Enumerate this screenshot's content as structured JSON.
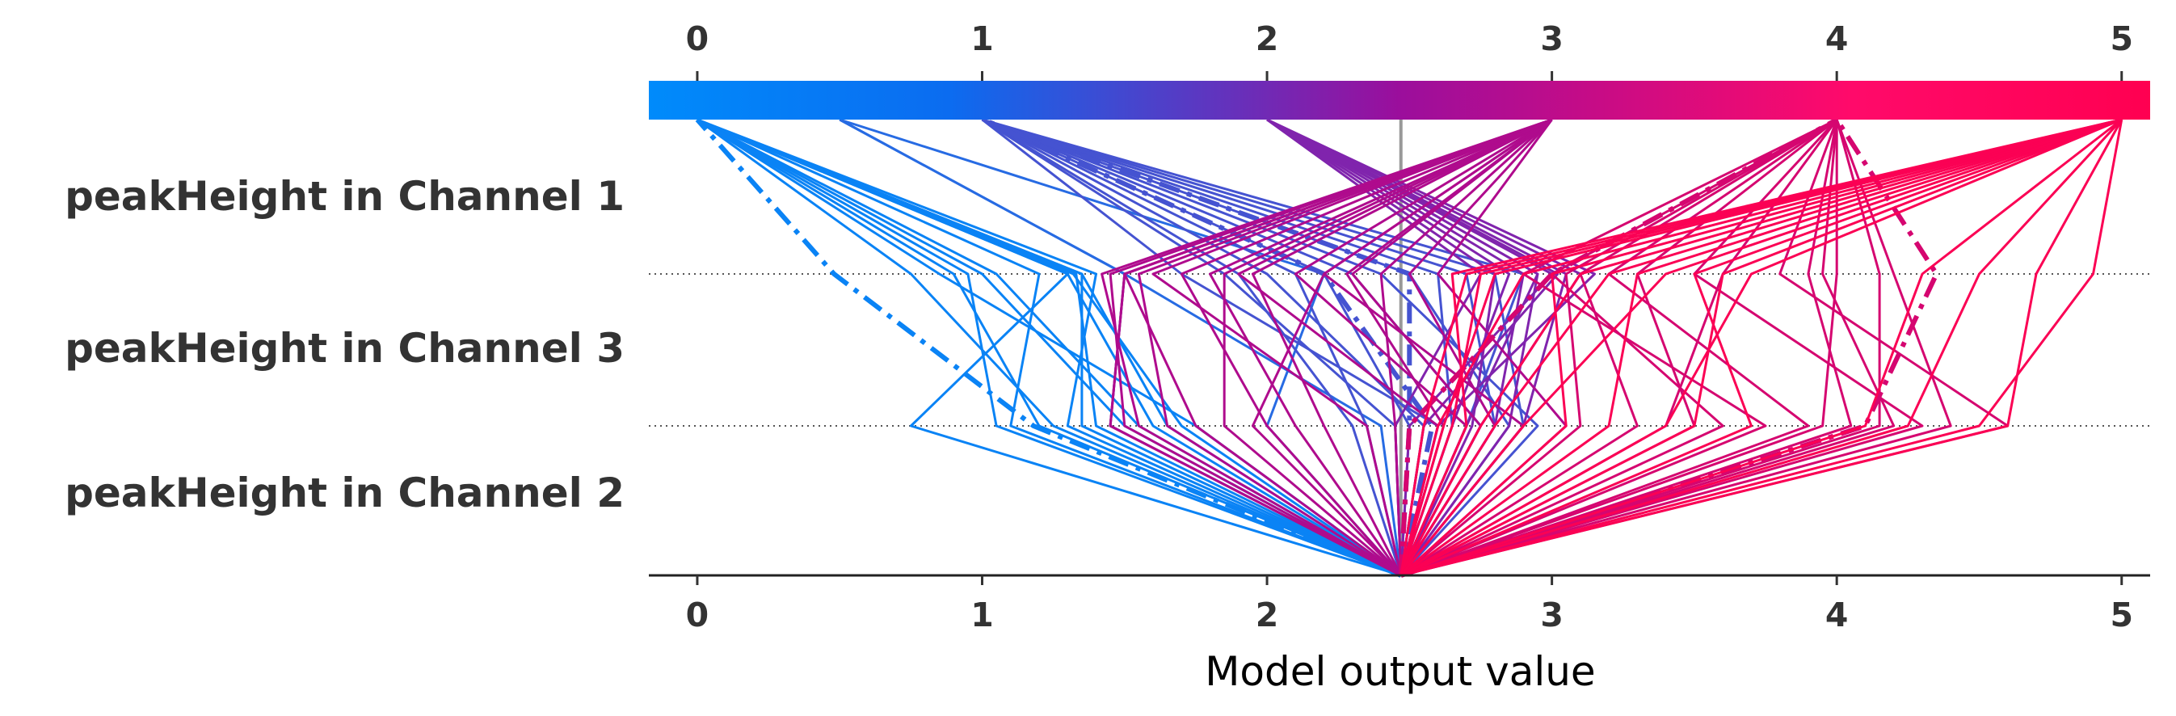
{
  "chart_data": {
    "type": "line",
    "title": "",
    "xlabel": "Model output value",
    "ylabel": "",
    "xlim": [
      -0.17,
      5.1
    ],
    "x_ticks": [
      "0",
      "1",
      "2",
      "3",
      "4",
      "5"
    ],
    "base_value": 2.47,
    "features": [
      "peakHeight in Channel 1",
      "peakHeight in Channel 3",
      "peakHeight in Channel 2"
    ],
    "colorbar": {
      "from": "#008bfb",
      "mid": "#9b0e9c",
      "to": "#ff0051"
    },
    "series": [
      {
        "values": [
          2.47,
          1.75,
          0.85,
          0
        ],
        "dashed": false
      },
      {
        "values": [
          2.47,
          1.55,
          1.05,
          0
        ],
        "dashed": false
      },
      {
        "values": [
          2.47,
          1.35,
          1.35,
          0
        ],
        "dashed": false
      },
      {
        "values": [
          2.47,
          1.6,
          1.3,
          0
        ],
        "dashed": false
      },
      {
        "values": [
          2.47,
          1.25,
          0.75,
          0
        ],
        "dashed": false
      },
      {
        "values": [
          2.47,
          1.5,
          1.0,
          0
        ],
        "dashed": false
      },
      {
        "values": [
          2.47,
          1.1,
          1.2,
          0
        ],
        "dashed": false
      },
      {
        "values": [
          2.47,
          0.75,
          1.3,
          0
        ],
        "dashed": false
      },
      {
        "values": [
          2.47,
          1.2,
          0.9,
          0
        ],
        "dashed": false
      },
      {
        "values": [
          2.47,
          1.3,
          1.4,
          0
        ],
        "dashed": false
      },
      {
        "values": [
          2.47,
          1.65,
          1.35,
          0
        ],
        "dashed": false
      },
      {
        "values": [
          2.47,
          1.4,
          1.33,
          0
        ],
        "dashed": false
      },
      {
        "values": [
          2.47,
          1.05,
          0.95,
          0
        ],
        "dashed": false
      },
      {
        "values": [
          2.47,
          1.7,
          1.32,
          0
        ],
        "dashed": false
      },
      {
        "values": [
          2.47,
          1.18,
          0.48,
          0
        ],
        "dashed": true
      },
      {
        "values": [
          2.47,
          1.45,
          1.5,
          0.5
        ],
        "dashed": false
      },
      {
        "values": [
          2.47,
          2.0,
          2.2,
          0.5
        ],
        "dashed": false
      },
      {
        "values": [
          2.47,
          2.4,
          1.5,
          0.5
        ],
        "dashed": false
      },
      {
        "values": [
          2.47,
          2.9,
          2.8,
          1
        ],
        "dashed": false
      },
      {
        "values": [
          2.47,
          2.3,
          1.9,
          1
        ],
        "dashed": false
      },
      {
        "values": [
          2.47,
          2.85,
          2.5,
          1
        ],
        "dashed": false
      },
      {
        "values": [
          2.47,
          2.5,
          2.2,
          1
        ],
        "dashed": false
      },
      {
        "values": [
          2.47,
          2.7,
          2.9,
          1
        ],
        "dashed": false
      },
      {
        "values": [
          2.47,
          2.65,
          2.6,
          1
        ],
        "dashed": false
      },
      {
        "values": [
          2.47,
          2.95,
          2.4,
          1
        ],
        "dashed": false
      },
      {
        "values": [
          2.47,
          2.6,
          1.7,
          1
        ],
        "dashed": false
      },
      {
        "values": [
          2.47,
          2.35,
          2.1,
          1
        ],
        "dashed": false
      },
      {
        "values": [
          2.47,
          2.75,
          2.3,
          1
        ],
        "dashed": false
      },
      {
        "values": [
          2.47,
          2.55,
          2.0,
          1
        ],
        "dashed": false
      },
      {
        "values": [
          2.47,
          2.45,
          1.85,
          1
        ],
        "dashed": false
      },
      {
        "values": [
          2.47,
          2.8,
          2.7,
          1
        ],
        "dashed": false
      },
      {
        "values": [
          2.47,
          2.5,
          2.5,
          1
        ],
        "dashed": true
      },
      {
        "values": [
          2.47,
          2.58,
          2.2,
          1
        ],
        "dashed": true
      },
      {
        "values": [
          2.47,
          2.7,
          2.95,
          2
        ],
        "dashed": false
      },
      {
        "values": [
          2.47,
          2.9,
          3.05,
          2
        ],
        "dashed": false
      },
      {
        "values": [
          2.47,
          2.6,
          3.15,
          2
        ],
        "dashed": false
      },
      {
        "values": [
          2.47,
          2.8,
          2.9,
          2
        ],
        "dashed": false
      },
      {
        "values": [
          2.47,
          2.5,
          3.0,
          2
        ],
        "dashed": false
      },
      {
        "values": [
          2.47,
          2.65,
          2.85,
          2
        ],
        "dashed": false
      },
      {
        "values": [
          2.47,
          2.75,
          3.1,
          2
        ],
        "dashed": false
      },
      {
        "values": [
          2.47,
          2.45,
          2.75,
          2
        ],
        "dashed": false
      },
      {
        "values": [
          2.47,
          2.85,
          2.95,
          2
        ],
        "dashed": false
      },
      {
        "values": [
          2.47,
          2.55,
          3.02,
          2
        ],
        "dashed": false
      },
      {
        "values": [
          2.47,
          2.72,
          2.8,
          2
        ],
        "dashed": false
      },
      {
        "values": [
          2.47,
          1.45,
          1.5,
          3
        ],
        "dashed": false
      },
      {
        "values": [
          2.47,
          1.5,
          1.45,
          3
        ],
        "dashed": false
      },
      {
        "values": [
          2.47,
          1.45,
          1.5,
          3
        ],
        "dashed": false
      },
      {
        "values": [
          2.47,
          1.65,
          1.55,
          3
        ],
        "dashed": false
      },
      {
        "values": [
          2.47,
          1.55,
          1.42,
          3
        ],
        "dashed": false
      },
      {
        "values": [
          2.47,
          2.0,
          1.7,
          3
        ],
        "dashed": false
      },
      {
        "values": [
          2.47,
          2.2,
          1.95,
          3
        ],
        "dashed": false
      },
      {
        "values": [
          2.47,
          1.85,
          1.85,
          3
        ],
        "dashed": false
      },
      {
        "values": [
          2.47,
          2.35,
          1.6,
          3
        ],
        "dashed": false
      },
      {
        "values": [
          2.47,
          2.6,
          1.9,
          3
        ],
        "dashed": false
      },
      {
        "values": [
          2.47,
          2.9,
          2.2,
          3
        ],
        "dashed": false
      },
      {
        "values": [
          2.47,
          2.75,
          2.3,
          3
        ],
        "dashed": false
      },
      {
        "values": [
          2.47,
          2.45,
          2.4,
          3
        ],
        "dashed": false
      },
      {
        "values": [
          2.47,
          2.7,
          2.1,
          3
        ],
        "dashed": false
      },
      {
        "values": [
          2.47,
          1.75,
          1.5,
          3
        ],
        "dashed": false
      },
      {
        "values": [
          2.47,
          2.8,
          2.5,
          3
        ],
        "dashed": false
      },
      {
        "values": [
          2.47,
          2.1,
          1.8,
          3
        ],
        "dashed": false
      },
      {
        "values": [
          2.47,
          1.95,
          2.2,
          3
        ],
        "dashed": false
      },
      {
        "values": [
          2.47,
          3.05,
          2.6,
          3
        ],
        "dashed": false
      },
      {
        "values": [
          2.47,
          2.62,
          2.28,
          3
        ],
        "dashed": false
      },
      {
        "values": [
          2.47,
          3.3,
          3.1,
          4
        ],
        "dashed": false
      },
      {
        "values": [
          2.47,
          3.6,
          3.0,
          4
        ],
        "dashed": false
      },
      {
        "values": [
          2.47,
          3.9,
          3.2,
          4
        ],
        "dashed": false
      },
      {
        "values": [
          2.47,
          4.3,
          3.5,
          4
        ],
        "dashed": false
      },
      {
        "values": [
          2.47,
          4.6,
          3.8,
          4
        ],
        "dashed": false
      },
      {
        "values": [
          2.47,
          3.75,
          2.9,
          4
        ],
        "dashed": false
      },
      {
        "values": [
          2.47,
          4.2,
          3.95,
          4
        ],
        "dashed": false
      },
      {
        "values": [
          2.47,
          3.95,
          4.0,
          4
        ],
        "dashed": false
      },
      {
        "values": [
          2.47,
          3.5,
          3.3,
          4
        ],
        "dashed": false
      },
      {
        "values": [
          2.47,
          4.05,
          3.9,
          4
        ],
        "dashed": false
      },
      {
        "values": [
          2.47,
          4.4,
          4.2,
          4
        ],
        "dashed": false
      },
      {
        "values": [
          2.47,
          3.1,
          3.05,
          4
        ],
        "dashed": false
      },
      {
        "values": [
          2.47,
          4.15,
          4.15,
          4
        ],
        "dashed": false
      },
      {
        "values": [
          2.47,
          3.4,
          3.6,
          4
        ],
        "dashed": false
      },
      {
        "values": [
          2.47,
          4.1,
          4.35,
          4
        ],
        "dashed": true
      },
      {
        "values": [
          2.47,
          2.5,
          3.0,
          4
        ],
        "dashed": true
      },
      {
        "values": [
          2.47,
          4.6,
          4.7,
          5
        ],
        "dashed": false
      },
      {
        "values": [
          2.47,
          4.25,
          4.5,
          5
        ],
        "dashed": false
      },
      {
        "values": [
          2.47,
          3.4,
          3.7,
          5
        ],
        "dashed": false
      },
      {
        "values": [
          2.47,
          3.05,
          3.0,
          5
        ],
        "dashed": false
      },
      {
        "values": [
          2.47,
          3.7,
          3.5,
          5
        ],
        "dashed": false
      },
      {
        "values": [
          2.47,
          4.1,
          4.3,
          5
        ],
        "dashed": false
      },
      {
        "values": [
          2.47,
          4.5,
          4.9,
          5
        ],
        "dashed": false
      },
      {
        "values": [
          2.47,
          2.65,
          2.75,
          5
        ],
        "dashed": false
      },
      {
        "values": [
          2.47,
          2.6,
          2.9,
          5
        ],
        "dashed": false
      },
      {
        "values": [
          2.47,
          2.75,
          3.1,
          5
        ],
        "dashed": false
      },
      {
        "values": [
          2.47,
          3.2,
          3.3,
          5
        ],
        "dashed": false
      },
      {
        "values": [
          2.47,
          2.55,
          2.7,
          5
        ],
        "dashed": false
      },
      {
        "values": [
          2.47,
          2.8,
          3.2,
          5
        ],
        "dashed": false
      },
      {
        "values": [
          2.47,
          3.5,
          3.6,
          5
        ],
        "dashed": false
      },
      {
        "values": [
          2.47,
          2.7,
          2.65,
          5
        ],
        "dashed": false
      },
      {
        "values": [
          2.47,
          2.9,
          3.4,
          5
        ],
        "dashed": false
      },
      {
        "values": [
          2.47,
          2.62,
          2.8,
          5
        ],
        "dashed": false
      }
    ]
  }
}
